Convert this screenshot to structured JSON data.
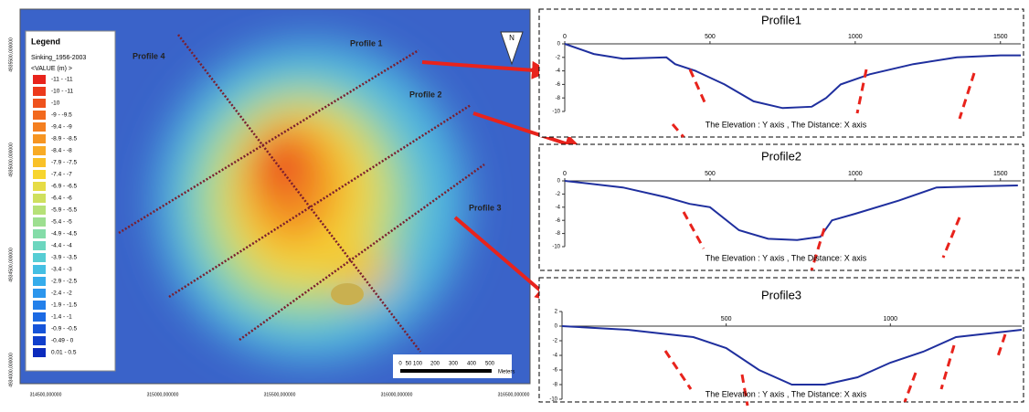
{
  "map": {
    "legend": {
      "title": "Legend",
      "layer": "Sinking_1956-2003",
      "field": "<VALUE (m) >",
      "entries": [
        {
          "label": "-11 - -11",
          "color": "#e8231c"
        },
        {
          "label": "-10 - -11",
          "color": "#ec3a1c"
        },
        {
          "label": "-10",
          "color": "#ef521d"
        },
        {
          "label": "-9 - -9.5",
          "color": "#f2691e"
        },
        {
          "label": "-9.4 - -9",
          "color": "#f47f20"
        },
        {
          "label": "-8.9 - -8.5",
          "color": "#f69522"
        },
        {
          "label": "-8.4 - -8",
          "color": "#f8ab25"
        },
        {
          "label": "-7.9 - -7.5",
          "color": "#f9c128"
        },
        {
          "label": "-7.4 - -7",
          "color": "#f7d52e"
        },
        {
          "label": "-6.9 - -6.5",
          "color": "#e6dc45"
        },
        {
          "label": "-6.4 - -6",
          "color": "#cfe05e"
        },
        {
          "label": "-5.9 - -5.5",
          "color": "#b6e177"
        },
        {
          "label": "-5.4 - -5",
          "color": "#9ddf90"
        },
        {
          "label": "-4.9 - -4.5",
          "color": "#84dca8"
        },
        {
          "label": "-4.4 - -4",
          "color": "#6cd6bf"
        },
        {
          "label": "-3.9 - -3.5",
          "color": "#56cdd4"
        },
        {
          "label": "-3.4 - -3",
          "color": "#44bfe3"
        },
        {
          "label": "-2.9 - -2.5",
          "color": "#36aceb"
        },
        {
          "label": "-2.4 - -2",
          "color": "#2c96ed"
        },
        {
          "label": "-1.9 - -1.5",
          "color": "#2380ea"
        },
        {
          "label": "-1.4 - -1",
          "color": "#1c6ae3"
        },
        {
          "label": "-0.9 - -0.5",
          "color": "#1654d9"
        },
        {
          "label": "-0.49 - 0",
          "color": "#113fcc"
        },
        {
          "label": "0.01 - 0.5",
          "color": "#0c2bbd"
        }
      ]
    },
    "profile_labels": [
      "Profile 1",
      "Profile  2",
      "Profile 3",
      "Profile 4"
    ],
    "north": "N",
    "scale_labels": [
      "0",
      "50",
      "100",
      "200",
      "300",
      "400",
      "500"
    ],
    "scale_unit": "Meters",
    "x_coords": [
      "314500,000000",
      "315000,000000",
      "315500,000000",
      "316000,000000",
      "316500,000000"
    ],
    "y_coords": [
      "4935500,000000",
      "4935000,000000",
      "4934500,000000",
      "4934000,000000"
    ]
  },
  "chart_data": [
    {
      "type": "line",
      "title": "Profile1",
      "annotation": "The Elevation : Y axis , The Distance: X axis",
      "color": "#1f2f9e",
      "x": [
        0,
        100,
        200,
        350,
        380,
        450,
        550,
        650,
        750,
        850,
        900,
        950,
        1050,
        1200,
        1350,
        1500,
        1570
      ],
      "values": [
        0,
        -1.5,
        -2.2,
        -2,
        -3,
        -4,
        -6,
        -8.5,
        -9.5,
        -9.3,
        -8,
        -6,
        -4.5,
        -3,
        -2,
        -1.7,
        -1.7
      ],
      "xlim": [
        0,
        1570
      ],
      "ylim": [
        -10,
        0
      ],
      "xticks": [
        0,
        500,
        1000,
        1500
      ],
      "yticks": [
        0,
        -2,
        -4,
        -6,
        -8,
        -10
      ]
    },
    {
      "type": "line",
      "title": "Profile2",
      "annotation": "The Elevation : Y axis , The Distance: X axis",
      "color": "#1f2f9e",
      "x": [
        0,
        200,
        350,
        430,
        500,
        600,
        700,
        800,
        880,
        920,
        1000,
        1150,
        1280,
        1450,
        1560
      ],
      "values": [
        0,
        -1,
        -2.5,
        -3.5,
        -4,
        -7.5,
        -8.8,
        -9,
        -8.5,
        -6,
        -5,
        -3,
        -1,
        -0.8,
        -0.7
      ],
      "xlim": [
        0,
        1570
      ],
      "ylim": [
        -10,
        0
      ],
      "xticks": [
        0,
        500,
        1000,
        1500
      ],
      "yticks": [
        0,
        -2,
        -4,
        -6,
        -8,
        -10
      ]
    },
    {
      "type": "line",
      "title": "Profile3",
      "annotation": "The Elevation : Y axis , The Distance: X axis",
      "color": "#1f2f9e",
      "x": [
        0,
        200,
        400,
        500,
        600,
        700,
        800,
        900,
        1000,
        1100,
        1200,
        1300,
        1400
      ],
      "values": [
        0,
        -0.5,
        -1.5,
        -3,
        -6,
        -8,
        -8,
        -7,
        -5,
        -3.5,
        -1.5,
        -1,
        -0.5
      ],
      "xlim": [
        0,
        1400
      ],
      "ylim": [
        -10,
        2
      ],
      "xticks": [
        500,
        1000
      ],
      "yticks": [
        2,
        0,
        -2,
        -4,
        -6,
        -8,
        -10
      ]
    }
  ]
}
